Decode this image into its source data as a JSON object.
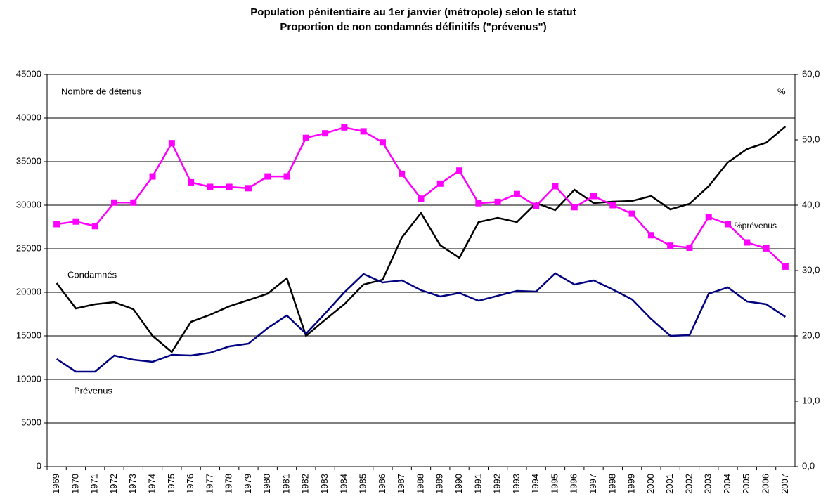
{
  "chart_data": {
    "type": "line",
    "title": "Population pénitentiaire au 1er janvier (métropole) selon le statut",
    "subtitle": "Proportion de non condamnés définitifs (\"prévenus\")",
    "ylabel": "Nombre de détenus",
    "y2label": "%",
    "categories": [
      "1969",
      "1970",
      "1971",
      "1972",
      "1973",
      "1974",
      "1975",
      "1976",
      "1977",
      "1978",
      "1979",
      "1980",
      "1981",
      "1982",
      "1983",
      "1984",
      "1985",
      "1986",
      "1987",
      "1988",
      "1989",
      "1990",
      "1991",
      "1992",
      "1993",
      "1994",
      "1995",
      "1996",
      "1997",
      "1998",
      "1999",
      "2000",
      "2001",
      "2002",
      "2003",
      "2004",
      "2005",
      "2006",
      "2007"
    ],
    "series": [
      {
        "name": "Condamnés",
        "color": "#000000",
        "values": [
          21050,
          18150,
          18630,
          18870,
          18060,
          15000,
          13150,
          16610,
          17420,
          18390,
          19110,
          19840,
          21610,
          15000,
          16850,
          18630,
          20890,
          21450,
          26290,
          29110,
          25400,
          23950,
          28060,
          28550,
          28060,
          30240,
          29440,
          31770,
          30240,
          30400,
          30480,
          31050,
          29520,
          30160,
          32180,
          34920,
          36450,
          37180,
          39030
        ]
      },
      {
        "name": "Prévenus",
        "color": "#000080",
        "values": [
          12340,
          10890,
          10890,
          12740,
          12260,
          12020,
          12820,
          12740,
          13060,
          13790,
          14110,
          15890,
          17340,
          15240,
          17580,
          20000,
          22100,
          21130,
          21370,
          20240,
          19520,
          19920,
          19030,
          19600,
          20160,
          20080,
          22180,
          20890,
          21370,
          20320,
          19190,
          16940,
          15000,
          15080,
          19840,
          20560,
          18950,
          18630,
          17180
        ]
      },
      {
        "name": "%prévenus",
        "color": "#ff00ff",
        "axis": "y2",
        "marker": "square",
        "values": [
          37.1,
          37.5,
          36.8,
          40.4,
          40.4,
          44.4,
          49.5,
          43.5,
          42.8,
          42.8,
          42.6,
          44.4,
          44.4,
          50.3,
          51.0,
          51.9,
          51.3,
          49.6,
          44.8,
          41.0,
          43.3,
          45.3,
          40.3,
          40.5,
          41.7,
          39.9,
          42.9,
          39.7,
          41.4,
          40.0,
          38.7,
          35.4,
          33.8,
          33.5,
          38.2,
          37.1,
          34.3,
          33.4,
          30.6
        ]
      }
    ],
    "ylim": [
      0,
      45000
    ],
    "yticks": [
      0,
      5000,
      10000,
      15000,
      20000,
      25000,
      30000,
      35000,
      40000,
      45000
    ],
    "y2lim": [
      0,
      60
    ],
    "y2ticks": [
      {
        "value": 0,
        "label": "0,0"
      },
      {
        "value": 10,
        "label": "10,0"
      },
      {
        "value": 20,
        "label": "20,0"
      },
      {
        "value": 30,
        "label": "30,0"
      },
      {
        "value": 40,
        "label": "40,0"
      },
      {
        "value": 50,
        "label": "50,0"
      },
      {
        "value": 60,
        "label": "60,0"
      }
    ],
    "grid": true
  }
}
